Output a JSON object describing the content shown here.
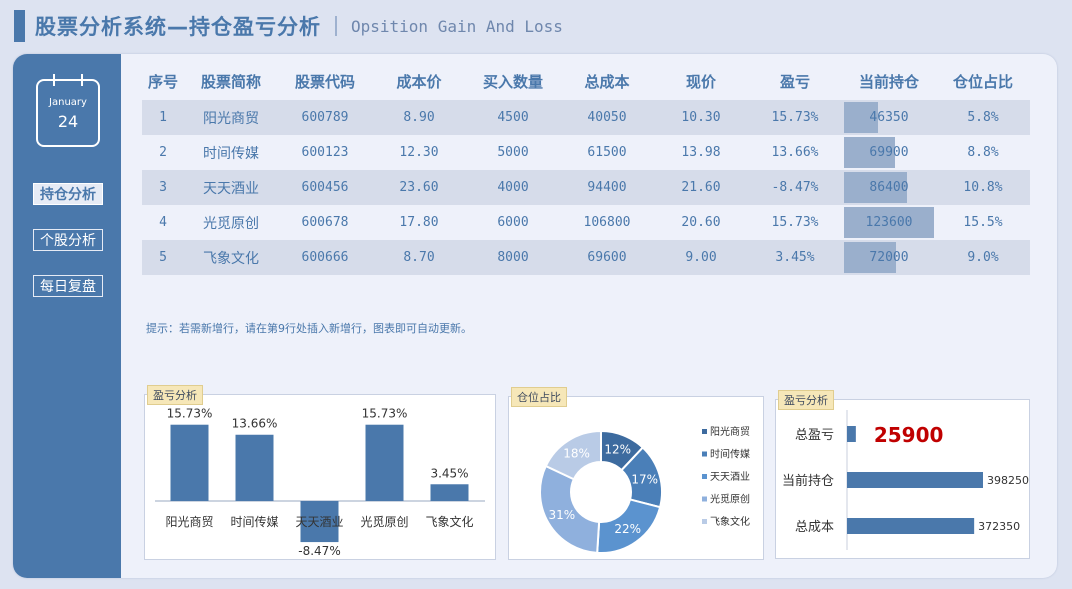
{
  "header": {
    "title": "股票分析系统—持仓盈亏分析",
    "subtitle": "Opsition Gain And Loss"
  },
  "calendar": {
    "month": "January",
    "day": "24"
  },
  "nav": [
    {
      "label": "持仓分析",
      "active": true
    },
    {
      "label": "个股分析",
      "active": false
    },
    {
      "label": "每日复盘",
      "active": false
    }
  ],
  "table": {
    "headers": [
      "序号",
      "股票简称",
      "股票代码",
      "成本价",
      "买入数量",
      "总成本",
      "现价",
      "盈亏",
      "当前持仓",
      "仓位占比"
    ],
    "rows": [
      [
        "1",
        "阳光商贸",
        "600789",
        "8.90",
        "4500",
        "40050",
        "10.30",
        "15.73%",
        "46350",
        "5.8%"
      ],
      [
        "2",
        "时间传媒",
        "600123",
        "12.30",
        "5000",
        "61500",
        "13.98",
        "13.66%",
        "69900",
        "8.8%"
      ],
      [
        "3",
        "天天酒业",
        "600456",
        "23.60",
        "4000",
        "94400",
        "21.60",
        "-8.47%",
        "86400",
        "10.8%"
      ],
      [
        "4",
        "光觅原创",
        "600678",
        "17.80",
        "6000",
        "106800",
        "20.60",
        "15.73%",
        "123600",
        "15.5%"
      ],
      [
        "5",
        "飞象文化",
        "600666",
        "8.70",
        "8000",
        "69600",
        "9.00",
        "3.45%",
        "72000",
        "9.0%"
      ]
    ],
    "holding_values": [
      46350,
      69900,
      86400,
      123600,
      72000
    ]
  },
  "hint": "提示：若需新增行，请在第9行处插入新增行，图表即可自动更新。",
  "colors": {
    "accent": "#4a78ab",
    "panel": "#eef1fa",
    "row_dark": "#d6dcea",
    "bar_fill": "#9aafcc",
    "highlight_red": "#c00000"
  },
  "chart_data": [
    {
      "type": "bar",
      "title": "盈亏分析",
      "categories": [
        "阳光商贸",
        "时间传媒",
        "天天酒业",
        "光觅原创",
        "飞象文化"
      ],
      "values": [
        15.73,
        13.66,
        -8.47,
        15.73,
        3.45
      ],
      "labels": [
        "15.73%",
        "13.66%",
        "-8.47%",
        "15.73%",
        "3.45%"
      ]
    },
    {
      "type": "pie",
      "title": "仓位占比",
      "categories": [
        "阳光商贸",
        "时间传媒",
        "天天酒业",
        "光觅原创",
        "飞象文化"
      ],
      "values": [
        12,
        17,
        22,
        31,
        18
      ],
      "labels": [
        "12%",
        "17%",
        "22%",
        "31%",
        "18%"
      ],
      "colors": [
        "#3d6b9f",
        "#4a7fb8",
        "#5b93cf",
        "#8fb0dd",
        "#b9cbe6"
      ],
      "legend": "right"
    },
    {
      "type": "bar",
      "orientation": "horizontal",
      "title": "盈亏分析",
      "categories": [
        "总盈亏",
        "当前持仓",
        "总成本"
      ],
      "values": [
        25900,
        398250,
        372350
      ],
      "labels": [
        "25900",
        "398250",
        "372350"
      ]
    }
  ]
}
